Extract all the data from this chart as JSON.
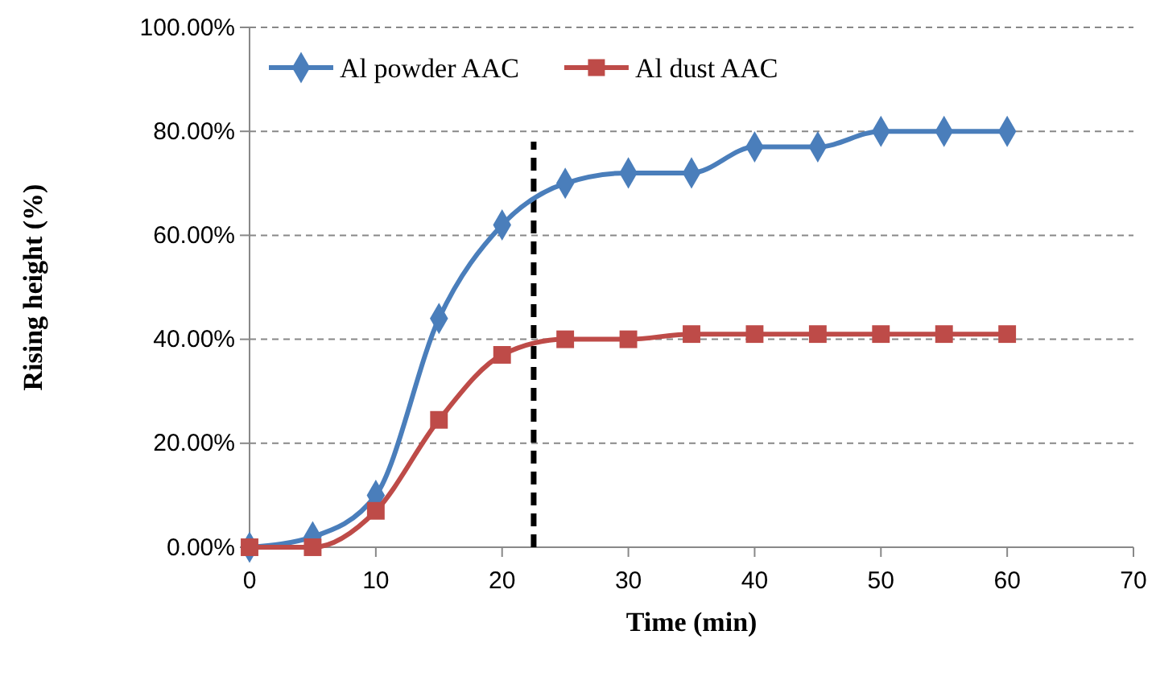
{
  "chart_data": {
    "type": "line",
    "xlabel": "Time (min)",
    "ylabel": "Rising height (%)",
    "x": [
      0,
      5,
      10,
      15,
      20,
      25,
      30,
      35,
      40,
      45,
      50,
      55,
      60
    ],
    "series": [
      {
        "name": "Al powder AAC",
        "color": "#4a7ebb",
        "marker": "diamond",
        "values": [
          0,
          2,
          10,
          44,
          62,
          70,
          72,
          72,
          77,
          77,
          80,
          80,
          80
        ]
      },
      {
        "name": "Al dust AAC",
        "color": "#be4b48",
        "marker": "square",
        "values": [
          0,
          0,
          7,
          24.5,
          37,
          40,
          40,
          41,
          41,
          41,
          41,
          41,
          41
        ]
      }
    ],
    "xlim": [
      0,
      70
    ],
    "xticks": [
      0,
      10,
      20,
      30,
      40,
      50,
      60,
      70
    ],
    "ylim": [
      0,
      100
    ],
    "yticks": [
      {
        "value": 0,
        "label": "0.00%"
      },
      {
        "value": 20,
        "label": "20.00%"
      },
      {
        "value": 40,
        "label": "40.00%"
      },
      {
        "value": 60,
        "label": "60.00%"
      },
      {
        "value": 80,
        "label": "80.00%"
      },
      {
        "value": 100,
        "label": "100.00%"
      }
    ],
    "ref_lines": [
      {
        "axis": "x",
        "value": 22.5,
        "color": "#000000",
        "line_style": "dashed"
      }
    ],
    "grid": "y",
    "legend": "top left",
    "line_style": "solid"
  }
}
